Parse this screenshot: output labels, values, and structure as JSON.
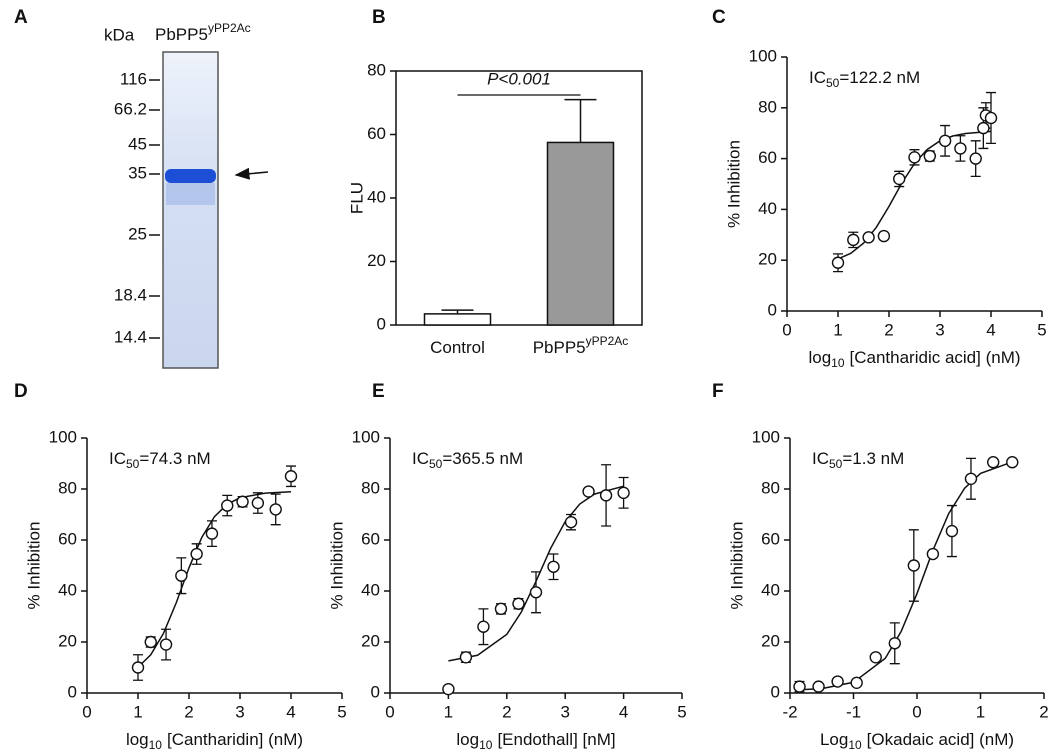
{
  "chart_data": [
    {
      "type": "gel",
      "panel_label": "A",
      "unit_label": "kDa",
      "lane_label": "PbPP5",
      "lane_label_superscript": "yPP2Ac",
      "markers": [
        116,
        66.2,
        45,
        35,
        25,
        18.4,
        14.4
      ]
    },
    {
      "type": "bar",
      "panel_label": "B",
      "ylabel": "FLU",
      "categories": [
        "Control",
        "PbPP5"
      ],
      "category_superscripts": [
        null,
        "yPP2Ac"
      ],
      "values": [
        3.5,
        57.5
      ],
      "errors": [
        1.2,
        13.5
      ],
      "colors": [
        "#ffffff",
        "#999999"
      ],
      "annotation": "P<0.001",
      "ylim": [
        0,
        80
      ],
      "yticks": [
        0,
        20,
        40,
        60,
        80
      ],
      "frame": true
    },
    {
      "type": "dose_response",
      "panel_label": "C",
      "ylabel": "% Inhibition",
      "xlabel_prefix": "log",
      "xlabel_subscript": "10",
      "xlabel": "[Cantharidic acid] (nM)",
      "annotation_prefix": "IC",
      "annotation_subscript": "50",
      "annotation": "=122.2 nM",
      "x": [
        1.0,
        1.3,
        1.6,
        1.9,
        2.2,
        2.5,
        2.8,
        3.1,
        3.4,
        3.7,
        3.85,
        3.9,
        4.0
      ],
      "values": [
        19,
        28,
        29,
        29.5,
        52,
        60.5,
        61,
        67,
        64,
        60,
        72,
        77,
        76
      ],
      "errors": [
        3.5,
        3,
        null,
        null,
        3,
        3,
        2,
        6,
        5,
        7,
        8,
        5,
        10
      ],
      "fit": {
        "x": [
          1,
          1.25,
          1.5,
          1.75,
          2,
          2.25,
          2.5,
          2.75,
          3,
          3.25,
          3.5,
          4
        ],
        "y": [
          20.5,
          22.7,
          26.7,
          32.9,
          41.2,
          50.3,
          58.1,
          63.6,
          67,
          68.9,
          69.9,
          70.7
        ]
      },
      "xlim": [
        0,
        5
      ],
      "ylim": [
        0,
        100
      ],
      "xticks": [
        0,
        1,
        2,
        3,
        4,
        5
      ],
      "yticks": [
        0,
        20,
        40,
        60,
        80,
        100
      ]
    },
    {
      "type": "dose_response",
      "panel_label": "D",
      "ylabel": "% Inhibition",
      "xlabel_prefix": "log",
      "xlabel_subscript": "10",
      "xlabel": "[Cantharidin] (nM)",
      "annotation_prefix": "IC",
      "annotation_subscript": "50",
      "annotation": "=74.3 nM",
      "x": [
        1.0,
        1.25,
        1.55,
        1.85,
        2.15,
        2.45,
        2.75,
        3.05,
        3.35,
        3.7,
        4.0
      ],
      "values": [
        10,
        20,
        19,
        46,
        54.5,
        62.5,
        73.5,
        75,
        74.5,
        72,
        85
      ],
      "errors": [
        5,
        2,
        6,
        7,
        4,
        5,
        4,
        2,
        4,
        6,
        4
      ],
      "fit": {
        "x": [
          1,
          1.25,
          1.5,
          1.75,
          2,
          2.25,
          2.5,
          2.75,
          3,
          3.5,
          4
        ],
        "y": [
          10.1,
          15,
          23.4,
          35.4,
          49.1,
          61,
          69.2,
          74,
          76.6,
          78.4,
          78.9
        ]
      },
      "xlim": [
        0,
        5
      ],
      "ylim": [
        0,
        100
      ],
      "xticks": [
        0,
        1,
        2,
        3,
        4,
        5
      ],
      "yticks": [
        0,
        20,
        40,
        60,
        80,
        100
      ]
    },
    {
      "type": "dose_response",
      "panel_label": "E",
      "ylabel": "% Inhibition",
      "xlabel_prefix": "log",
      "xlabel_subscript": "10",
      "xlabel": "[Endothall] [nM]",
      "annotation_prefix": "IC",
      "annotation_subscript": "50",
      "annotation": "=365.5 nM",
      "x": [
        1.0,
        1.3,
        1.6,
        1.9,
        2.2,
        2.5,
        2.8,
        3.1,
        3.4,
        3.7,
        4.0
      ],
      "values": [
        1.5,
        14,
        26,
        33,
        35,
        39.5,
        49.5,
        67,
        79,
        77.5,
        78.5
      ],
      "errors": [
        null,
        2,
        7,
        2,
        2,
        8,
        5,
        3,
        null,
        12,
        6
      ],
      "fit": {
        "x": [
          1,
          1.5,
          2,
          2.25,
          2.5,
          2.75,
          3,
          3.25,
          3.5,
          4
        ],
        "y": [
          12.6,
          14.8,
          23,
          31.8,
          43.8,
          56.7,
          67.2,
          74.1,
          78,
          81.1
        ]
      },
      "xlim": [
        0,
        5
      ],
      "ylim": [
        0,
        100
      ],
      "xticks": [
        0,
        1,
        2,
        3,
        4,
        5
      ],
      "yticks": [
        0,
        20,
        40,
        60,
        80,
        100
      ]
    },
    {
      "type": "dose_response",
      "panel_label": "F",
      "ylabel": "% Inhibition",
      "xlabel_prefix": "Log",
      "xlabel_subscript": "10",
      "xlabel": "[Okadaic acid] (nM)",
      "annotation_prefix": "IC",
      "annotation_subscript": "50",
      "annotation": "=1.3 nM",
      "x": [
        -1.85,
        -1.55,
        -1.25,
        -0.95,
        -0.65,
        -0.35,
        -0.05,
        0.25,
        0.55,
        0.85,
        1.2,
        1.5
      ],
      "values": [
        2.5,
        2.5,
        4.5,
        4,
        14,
        19.5,
        50,
        54.5,
        63.5,
        84,
        90.5,
        90.5
      ],
      "errors": [
        2,
        null,
        null,
        null,
        null,
        8,
        14,
        null,
        10,
        8,
        null,
        null
      ],
      "fit": {
        "x": [
          -1.8,
          -1.5,
          -1,
          -0.5,
          -0.25,
          0,
          0.25,
          0.5,
          0.75,
          1,
          1.5
        ],
        "y": [
          1.3,
          1.7,
          4.2,
          13.6,
          24.1,
          39,
          55.9,
          70.4,
          80.3,
          86.1,
          90.6
        ]
      },
      "xlim": [
        -2,
        2
      ],
      "ylim": [
        0,
        100
      ],
      "xticks": [
        -2,
        -1,
        0,
        1,
        2
      ],
      "yticks": [
        0,
        20,
        40,
        60,
        80,
        100
      ]
    }
  ]
}
